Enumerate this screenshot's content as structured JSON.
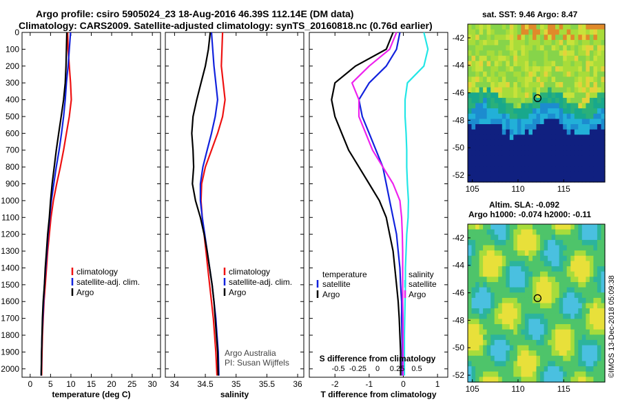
{
  "header": {
    "line1": "Argo profile: csiro 5905024_23 18-Aug-2016 46.39S 112.14E (DM data)",
    "line2": "Climatology: CARS2009. Satellite-adjusted climatology: synTS_20160818.nc (0.76d earlier)"
  },
  "colors": {
    "climatology": "#ee1111",
    "satellite": "#1122dd",
    "argo": "#000000",
    "salinity_satellite": "#22e6e6",
    "salinity_argo": "#ee22ee"
  },
  "chart_data": [
    {
      "type": "line",
      "panel": "temperature",
      "xlabel": "temperature (deg C)",
      "ylabel": "",
      "xlim": [
        -2,
        32
      ],
      "ylim": [
        2050,
        0
      ],
      "xticks": [
        "0",
        "5",
        "10",
        "15",
        "20",
        "25",
        "30"
      ],
      "yticks": [
        "0",
        "100",
        "200",
        "300",
        "400",
        "500",
        "600",
        "700",
        "800",
        "900",
        "1000",
        "1100",
        "1200",
        "1300",
        "1400",
        "1500",
        "1600",
        "1700",
        "1800",
        "1900",
        "2000"
      ],
      "ytick_values": [
        0,
        100,
        200,
        300,
        400,
        500,
        600,
        700,
        800,
        900,
        1000,
        1100,
        1200,
        1300,
        1400,
        1500,
        1600,
        1700,
        1800,
        1900,
        2000
      ],
      "legend": [
        "climatology",
        "satellite-adj. clim.",
        "Argo"
      ],
      "legend_position": "lower-right",
      "series": [
        {
          "name": "climatology",
          "color": "#ee1111",
          "x": [
            9.2,
            9.3,
            9.6,
            9.9,
            10.1,
            9.6,
            8.9,
            8.2,
            7.4,
            6.5,
            5.7,
            5.1,
            4.7,
            4.3,
            4.0,
            3.7,
            3.4,
            3.2,
            3.0,
            2.9,
            2.8
          ],
          "y": [
            0,
            100,
            200,
            300,
            400,
            500,
            600,
            700,
            800,
            900,
            1000,
            1100,
            1200,
            1300,
            1400,
            1500,
            1600,
            1700,
            1800,
            1900,
            2040
          ]
        },
        {
          "name": "satellite-adj. clim.",
          "color": "#1122dd",
          "x": [
            9.9,
            9.6,
            9.3,
            8.9,
            8.6,
            8.2,
            7.7,
            7.1,
            6.4,
            5.8,
            5.2,
            4.8,
            4.4,
            4.1,
            3.8,
            3.5,
            3.3,
            3.1,
            2.9,
            2.8,
            2.7
          ],
          "y": [
            0,
            100,
            200,
            300,
            400,
            500,
            600,
            700,
            800,
            900,
            1000,
            1100,
            1200,
            1300,
            1400,
            1500,
            1600,
            1700,
            1800,
            1900,
            2040
          ]
        },
        {
          "name": "Argo",
          "color": "#000000",
          "x": [
            9.0,
            8.9,
            8.8,
            8.6,
            8.2,
            7.6,
            7.0,
            6.4,
            5.9,
            5.4,
            5.0,
            4.7,
            4.3,
            4.0,
            3.7,
            3.5,
            3.2,
            3.0,
            2.9,
            2.8,
            2.7
          ],
          "y": [
            0,
            100,
            200,
            300,
            400,
            500,
            600,
            700,
            800,
            900,
            1000,
            1100,
            1200,
            1300,
            1400,
            1500,
            1600,
            1700,
            1800,
            1900,
            2040
          ]
        }
      ]
    },
    {
      "type": "line",
      "panel": "salinity",
      "xlabel": "salinity",
      "xlim": [
        33.85,
        36.1
      ],
      "ylim": [
        2050,
        0
      ],
      "xticks": [
        "34",
        "34.5",
        "35",
        "35.5",
        "36"
      ],
      "xtick_values": [
        34,
        34.5,
        35,
        35.5,
        36
      ],
      "legend": [
        "climatology",
        "satellite-adj. clim.",
        "Argo"
      ],
      "legend_position": "lower-right",
      "annotations": [
        "Argo Australia",
        "PI: Susan Wijffels"
      ],
      "series": [
        {
          "name": "climatology",
          "color": "#ee1111",
          "x": [
            34.78,
            34.77,
            34.76,
            34.79,
            34.82,
            34.78,
            34.7,
            34.6,
            34.5,
            34.44,
            34.43,
            34.45,
            34.48,
            34.51,
            34.54,
            34.57,
            34.6,
            34.63,
            34.65,
            34.67,
            34.69
          ],
          "y": [
            0,
            100,
            200,
            300,
            400,
            500,
            600,
            700,
            800,
            900,
            1000,
            1100,
            1200,
            1300,
            1400,
            1500,
            1600,
            1700,
            1800,
            1900,
            2040
          ]
        },
        {
          "name": "satellite-adj. clim.",
          "color": "#1122dd",
          "x": [
            34.6,
            34.62,
            34.64,
            34.67,
            34.7,
            34.66,
            34.6,
            34.53,
            34.46,
            34.42,
            34.42,
            34.45,
            34.49,
            34.53,
            34.57,
            34.61,
            34.64,
            34.67,
            34.69,
            34.71,
            34.72
          ],
          "y": [
            0,
            100,
            200,
            300,
            400,
            500,
            600,
            700,
            800,
            900,
            1000,
            1100,
            1200,
            1300,
            1400,
            1500,
            1600,
            1700,
            1800,
            1900,
            2040
          ]
        },
        {
          "name": "Argo",
          "color": "#000000",
          "x": [
            34.58,
            34.55,
            34.5,
            34.43,
            34.36,
            34.3,
            34.28,
            34.3,
            34.31,
            34.29,
            34.34,
            34.42,
            34.48,
            34.53,
            34.57,
            34.61,
            34.64,
            34.66,
            34.68,
            34.7,
            34.71
          ],
          "y": [
            0,
            100,
            200,
            300,
            400,
            500,
            600,
            700,
            800,
            900,
            1000,
            1100,
            1200,
            1300,
            1400,
            1500,
            1600,
            1700,
            1800,
            1900,
            2040
          ]
        }
      ]
    },
    {
      "type": "line",
      "panel": "difference",
      "xlabel": "T difference from climatology",
      "xlabel_top": "S difference from climatology",
      "xlim": [
        -2.75,
        1.3
      ],
      "ylim": [
        2050,
        0
      ],
      "xticks": [
        "-2",
        "-1",
        "0",
        "1"
      ],
      "xtick_values": [
        -2,
        -1,
        0,
        1
      ],
      "sticks": [
        "-0.5",
        "-0.25",
        "0",
        "0.25",
        "0.5"
      ],
      "stick_values": [
        -0.5,
        -0.25,
        0,
        0.25,
        0.5
      ],
      "legend_temperature": {
        "heading": "temperature",
        "items": [
          "satellite",
          "Argo"
        ]
      },
      "legend_salinity": {
        "heading": "salinity",
        "items": [
          "satellite",
          "Argo"
        ]
      },
      "series": [
        {
          "name": "temperature satellite",
          "color": "#1122dd",
          "x": [
            -0.1,
            -0.2,
            -0.5,
            -1.0,
            -1.3,
            -1.2,
            -1.0,
            -0.8,
            -0.6,
            -0.5,
            -0.4,
            -0.3,
            -0.2,
            -0.15,
            -0.1,
            -0.08,
            -0.05,
            -0.05,
            -0.04,
            -0.03,
            -0.03
          ],
          "y": [
            0,
            100,
            200,
            300,
            400,
            500,
            600,
            700,
            800,
            900,
            1000,
            1100,
            1200,
            1300,
            1400,
            1500,
            1600,
            1700,
            1800,
            1900,
            2040
          ]
        },
        {
          "name": "temperature Argo",
          "color": "#000000",
          "x": [
            -0.3,
            -0.5,
            -1.4,
            -2.0,
            -2.1,
            -2.0,
            -1.8,
            -1.6,
            -1.3,
            -1.0,
            -0.7,
            -0.5,
            -0.4,
            -0.3,
            -0.25,
            -0.2,
            -0.15,
            -0.12,
            -0.1,
            -0.08,
            -0.08
          ],
          "y": [
            0,
            100,
            200,
            300,
            400,
            500,
            600,
            700,
            800,
            900,
            1000,
            1100,
            1200,
            1300,
            1400,
            1500,
            1600,
            1700,
            1800,
            1900,
            2040
          ]
        },
        {
          "name": "salinity satellite",
          "color": "#22e6e6",
          "x": [
            0.6,
            0.72,
            0.6,
            0.12,
            0.05,
            0.05,
            0.08,
            0.1,
            0.1,
            0.12,
            0.15,
            0.14,
            0.1,
            0.08,
            0.06,
            0.06,
            0.05,
            0.04,
            0.03,
            0.03,
            0.03
          ],
          "y": [
            0,
            100,
            200,
            300,
            400,
            500,
            600,
            700,
            800,
            900,
            1000,
            1100,
            1200,
            1300,
            1400,
            1500,
            1600,
            1700,
            1800,
            1900,
            2040
          ]
        },
        {
          "name": "salinity Argo",
          "color": "#ee22ee",
          "x": [
            -0.2,
            -0.4,
            -1.0,
            -1.5,
            -1.3,
            -1.3,
            -1.1,
            -0.9,
            -0.6,
            -0.3,
            -0.1,
            -0.05,
            -0.03,
            -0.02,
            -0.02,
            -0.02,
            -0.02,
            -0.01,
            -0.01,
            -0.01,
            -0.01
          ],
          "y": [
            0,
            100,
            200,
            300,
            400,
            500,
            600,
            700,
            800,
            900,
            1000,
            1100,
            1200,
            1300,
            1400,
            1500,
            1600,
            1700,
            1800,
            1900,
            2040
          ]
        }
      ]
    },
    {
      "type": "heatmap",
      "panel": "sst-map",
      "title": "sat. SST: 9.46 Argo: 8.47",
      "xticks": [
        "105",
        "110",
        "115"
      ],
      "yticks": [
        "-42",
        "-44",
        "-46",
        "-48",
        "-50",
        "-52"
      ],
      "xlim": [
        104.5,
        119.5
      ],
      "ylim": [
        -52.5,
        -41
      ],
      "marker": {
        "lon": 112.14,
        "lat": -46.39
      }
    },
    {
      "type": "heatmap",
      "panel": "sla-map",
      "title_line1": "Altim. SLA: -0.092",
      "title_line2": "Argo h1000: -0.074 h2000: -0.11",
      "xticks": [
        "105",
        "110",
        "115"
      ],
      "yticks": [
        "-42",
        "-44",
        "-46",
        "-48",
        "-50",
        "-52"
      ],
      "xlim": [
        104.5,
        119.5
      ],
      "ylim": [
        -52.5,
        -41
      ],
      "marker": {
        "lon": 112.14,
        "lat": -46.39
      }
    }
  ],
  "credit": "©IMOS 13-Dec-2018 05:09:38"
}
